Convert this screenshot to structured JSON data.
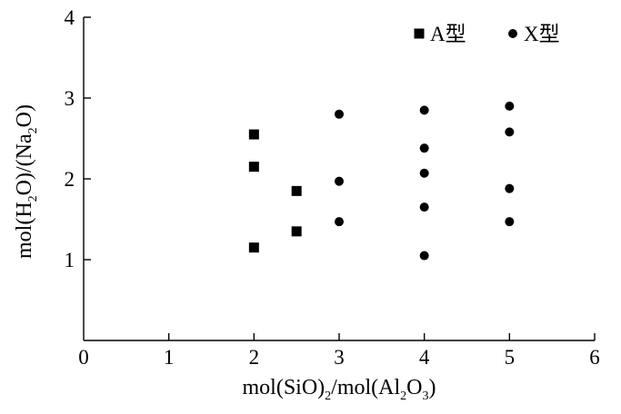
{
  "chart_data": {
    "type": "scatter",
    "xlim": [
      0,
      6
    ],
    "ylim": [
      0,
      4
    ],
    "x_ticks": [
      "0",
      "1",
      "2",
      "3",
      "4",
      "5",
      "6"
    ],
    "y_ticks": [
      "1",
      "2",
      "3",
      "4"
    ],
    "xlabel": "mol(SiO)2/mol(Al2O3)",
    "ylabel": "mol(H2O)/(Na2O)",
    "xlabel_parts": {
      "p1": "mol(SiO)",
      "s1": "2",
      "p2": "/mol(Al",
      "s2": "2",
      "p3": "O",
      "s3": "3",
      "p4": ")"
    },
    "ylabel_parts": {
      "p1": "mol(H",
      "s1": "2",
      "p2": "O)/(Na",
      "s2": "2",
      "p3": "O)"
    },
    "grid": false,
    "legend_position": "top-right",
    "series": [
      {
        "name": "A型",
        "marker": "square",
        "color": "#000000",
        "points": [
          [
            2,
            1.15
          ],
          [
            2,
            2.15
          ],
          [
            2,
            2.55
          ],
          [
            2.5,
            1.35
          ],
          [
            2.5,
            1.85
          ]
        ]
      },
      {
        "name": "X型",
        "marker": "circle",
        "color": "#000000",
        "points": [
          [
            3,
            1.47
          ],
          [
            3,
            1.97
          ],
          [
            3,
            2.8
          ],
          [
            4,
            1.05
          ],
          [
            4,
            1.65
          ],
          [
            4,
            2.07
          ],
          [
            4,
            2.38
          ],
          [
            4,
            2.85
          ],
          [
            5,
            1.47
          ],
          [
            5,
            1.88
          ],
          [
            5,
            2.58
          ],
          [
            5,
            2.9
          ]
        ]
      }
    ]
  }
}
